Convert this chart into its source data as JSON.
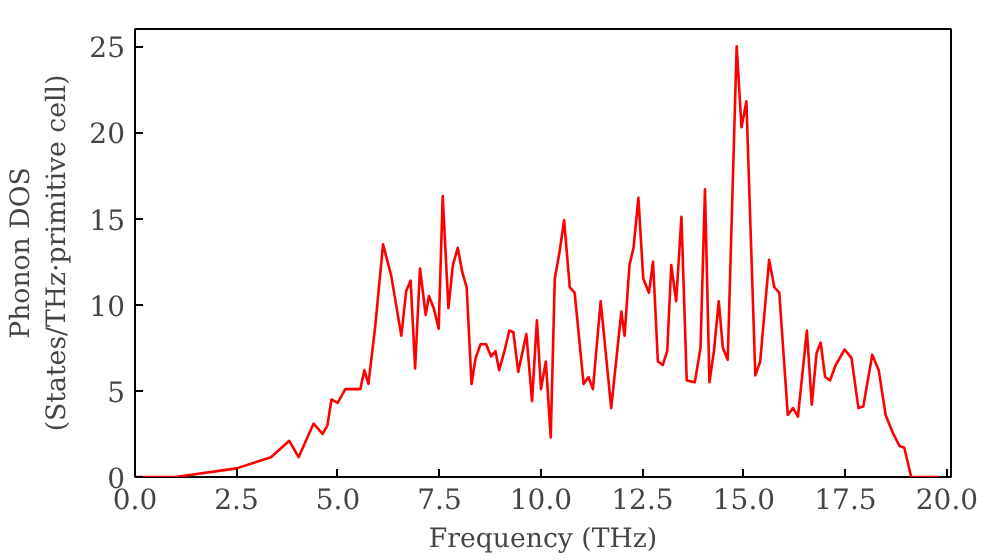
{
  "chart_data": {
    "type": "line",
    "xlabel": "Frequency (THz)",
    "ylabel": "Phonon DOS\n(States/THz·primitive cell)",
    "xlim": [
      0,
      20.1
    ],
    "ylim": [
      0,
      26
    ],
    "xticks": [
      {
        "value": 0,
        "label": "0.0"
      },
      {
        "value": 2.5,
        "label": "2.5"
      },
      {
        "value": 5,
        "label": "5.0"
      },
      {
        "value": 7.5,
        "label": "7.5"
      },
      {
        "value": 10,
        "label": "10.0"
      },
      {
        "value": 12.5,
        "label": "12.5"
      },
      {
        "value": 15,
        "label": "15.0"
      },
      {
        "value": 17.5,
        "label": "17.5"
      },
      {
        "value": 20,
        "label": "20.0"
      }
    ],
    "yticks": [
      0,
      5,
      10,
      15,
      20,
      25
    ],
    "grid": false,
    "series": [
      {
        "color": "#ff0000",
        "x": [
          0,
          1,
          2.5,
          3.35,
          3.8,
          4.03,
          4.4,
          4.62,
          4.74,
          4.84,
          4.99,
          5.18,
          5.55,
          5.65,
          5.75,
          5.92,
          6.11,
          6.31,
          6.56,
          6.68,
          6.79,
          6.9,
          7.02,
          7.16,
          7.24,
          7.36,
          7.48,
          7.58,
          7.72,
          7.83,
          7.95,
          8.06,
          8.17,
          8.29,
          8.39,
          8.51,
          8.65,
          8.77,
          8.88,
          8.97,
          9.1,
          9.22,
          9.32,
          9.44,
          9.64,
          9.78,
          9.9,
          10.0,
          10.12,
          10.24,
          10.34,
          10.46,
          10.57,
          10.71,
          10.83,
          11.05,
          11.17,
          11.28,
          11.47,
          11.73,
          11.98,
          12.06,
          12.18,
          12.28,
          12.4,
          12.52,
          12.66,
          12.76,
          12.88,
          13.0,
          13.11,
          13.21,
          13.33,
          13.46,
          13.59,
          13.79,
          13.93,
          14.04,
          14.15,
          14.26,
          14.38,
          14.48,
          14.6,
          14.82,
          14.94,
          15.06,
          15.28,
          15.4,
          15.62,
          15.75,
          15.87,
          16.08,
          16.21,
          16.33,
          16.55,
          16.67,
          16.79,
          16.89,
          17.0,
          17.12,
          17.26,
          17.48,
          17.65,
          17.82,
          17.94,
          18.16,
          18.32,
          18.49,
          18.66,
          18.83,
          18.95,
          19.12,
          19.8
        ],
        "values": [
          0,
          0,
          0.5,
          1.15,
          2.1,
          1.15,
          3.1,
          2.5,
          3.0,
          4.5,
          4.3,
          5.1,
          5.1,
          6.2,
          5.4,
          8.8,
          13.5,
          11.7,
          8.2,
          10.8,
          11.4,
          6.3,
          12.1,
          9.4,
          10.5,
          9.8,
          8.6,
          16.3,
          9.8,
          12.3,
          13.3,
          11.9,
          11.0,
          5.4,
          6.9,
          7.7,
          7.7,
          7.0,
          7.3,
          6.2,
          7.3,
          8.5,
          8.4,
          6.1,
          8.3,
          4.4,
          9.1,
          5.1,
          6.7,
          2.3,
          11.5,
          13.1,
          14.9,
          11.0,
          10.7,
          5.4,
          5.8,
          5.1,
          10.2,
          4.0,
          9.6,
          8.2,
          12.3,
          13.3,
          16.2,
          11.5,
          10.7,
          12.5,
          6.7,
          6.5,
          7.3,
          12.3,
          10.2,
          15.1,
          5.6,
          5.5,
          7.5,
          16.7,
          5.5,
          7.3,
          10.2,
          7.5,
          6.8,
          25.0,
          20.3,
          21.8,
          5.9,
          6.7,
          12.6,
          11.0,
          10.7,
          3.6,
          4.0,
          3.5,
          8.5,
          4.2,
          7.2,
          7.8,
          5.8,
          5.6,
          6.5,
          7.4,
          6.9,
          4.0,
          4.1,
          7.1,
          6.2,
          3.6,
          2.6,
          1.8,
          1.7,
          0,
          0
        ]
      }
    ]
  }
}
